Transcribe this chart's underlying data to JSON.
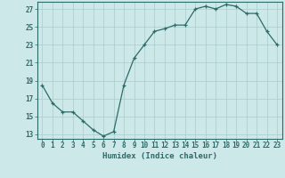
{
  "x": [
    0,
    1,
    2,
    3,
    4,
    5,
    6,
    7,
    8,
    9,
    10,
    11,
    12,
    13,
    14,
    15,
    16,
    17,
    18,
    19,
    20,
    21,
    22,
    23
  ],
  "y": [
    18.5,
    16.5,
    15.5,
    15.5,
    14.5,
    13.5,
    12.8,
    13.3,
    18.5,
    21.5,
    23.0,
    24.5,
    24.8,
    25.2,
    25.2,
    27.0,
    27.3,
    27.0,
    27.5,
    27.3,
    26.5,
    26.5,
    24.5,
    23.0
  ],
  "line_color": "#2d6b6b",
  "marker_color": "#2d6b6b",
  "bg_color": "#cce8e8",
  "grid_color": "#aacccc",
  "axis_color": "#2d6b6b",
  "xlabel": "Humidex (Indice chaleur)",
  "ylim": [
    12.5,
    27.8
  ],
  "xlim": [
    -0.5,
    23.5
  ],
  "yticks": [
    13,
    15,
    17,
    19,
    21,
    23,
    25,
    27
  ],
  "xticks": [
    0,
    1,
    2,
    3,
    4,
    5,
    6,
    7,
    8,
    9,
    10,
    11,
    12,
    13,
    14,
    15,
    16,
    17,
    18,
    19,
    20,
    21,
    22,
    23
  ],
  "label_fontsize": 6.5,
  "tick_fontsize": 5.5
}
